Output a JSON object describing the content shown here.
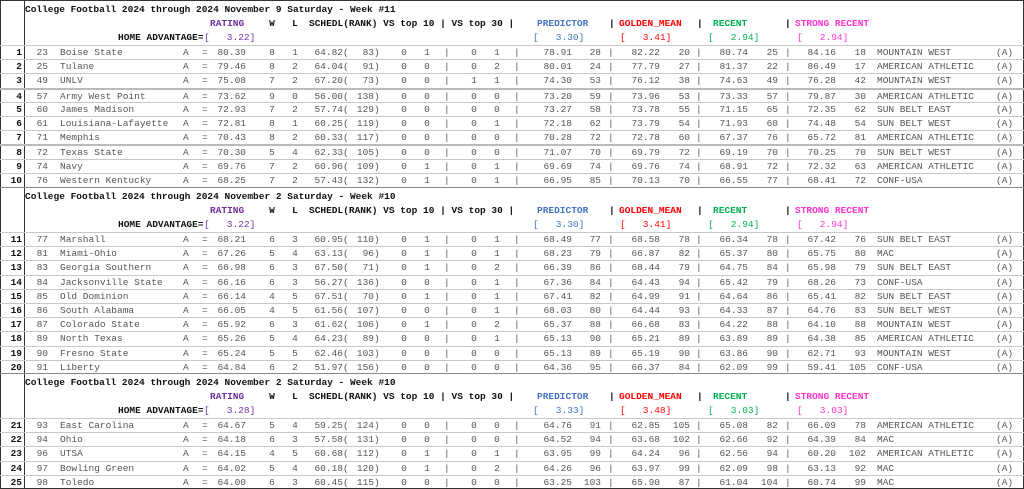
{
  "colors": {
    "rating": "#7030a0",
    "predictor": "#4472c4",
    "golden_mean": "#ff0000",
    "recent": "#00b050",
    "strong_recent": "#ff33cc"
  },
  "labels": {
    "rating": "RATING",
    "w": "W",
    "l": "L",
    "schedl": "SCHEDL(RANK) VS top 10 | VS top 30 |",
    "predictor": "PREDICTOR",
    "golden_mean": "GOLDEN_MEAN",
    "recent": "RECENT",
    "strong_recent": "STRONG RECENT",
    "sep": "|",
    "home_advantage": "HOME ADVANTAGE=",
    "eq": "=",
    "open": "(",
    "close": ")"
  },
  "sections": [
    {
      "title": "College Football 2024 through 2024 November 9 Saturday - Week #11",
      "home_adv": "[   3.22]",
      "predictor_adv": "[   3.30]",
      "golden_adv": "[   3.41]",
      "recent_adv": "[   2.94]",
      "strong_adv": "[   2.94]",
      "rows": [
        {
          "n": "1",
          "rank": "23",
          "team": "Boise State",
          "loc": "A",
          "rating": "80.39",
          "w": "8",
          "l": "1",
          "sched": "64.82",
          "sched_rank": "83",
          "t10w": "0",
          "t10l": "1",
          "t30w": "0",
          "t30l": "1",
          "pred": "78.91",
          "pred_rank": "28",
          "gm": "82.22",
          "gm_rank": "20",
          "rec": "80.74",
          "rec_rank": "25",
          "sr": "84.16",
          "sr_rank": "18",
          "conf": "MOUNTAIN WEST",
          "tag": "(A)"
        },
        {
          "n": "2",
          "rank": "25",
          "team": "Tulane",
          "loc": "A",
          "rating": "79.46",
          "w": "8",
          "l": "2",
          "sched": "64.04",
          "sched_rank": "91",
          "t10w": "0",
          "t10l": "0",
          "t30w": "0",
          "t30l": "2",
          "pred": "80.01",
          "pred_rank": "24",
          "gm": "77.79",
          "gm_rank": "27",
          "rec": "81.37",
          "rec_rank": "22",
          "sr": "86.49",
          "sr_rank": "17",
          "conf": "AMERICAN ATHLETIC",
          "tag": "(A)"
        },
        {
          "n": "3",
          "rank": "49",
          "team": "UNLV",
          "loc": "A",
          "rating": "75.08",
          "w": "7",
          "l": "2",
          "sched": "67.20",
          "sched_rank": "73",
          "t10w": "0",
          "t10l": "0",
          "t30w": "1",
          "t30l": "1",
          "pred": "74.30",
          "pred_rank": "53",
          "gm": "76.12",
          "gm_rank": "38",
          "rec": "74.63",
          "rec_rank": "49",
          "sr": "76.28",
          "sr_rank": "42",
          "conf": "MOUNTAIN WEST",
          "tag": "(A)"
        },
        {
          "n": "4",
          "rank": "57",
          "team": "Army West Point",
          "loc": "A",
          "rating": "73.62",
          "w": "9",
          "l": "0",
          "sched": "56.00",
          "sched_rank": "138",
          "t10w": "0",
          "t10l": "0",
          "t30w": "0",
          "t30l": "0",
          "pred": "73.20",
          "pred_rank": "59",
          "gm": "73.96",
          "gm_rank": "53",
          "rec": "73.33",
          "rec_rank": "57",
          "sr": "79.87",
          "sr_rank": "30",
          "conf": "AMERICAN ATHLETIC",
          "tag": "(A)"
        },
        {
          "n": "5",
          "rank": "60",
          "team": "James Madison",
          "loc": "A",
          "rating": "72.93",
          "w": "7",
          "l": "2",
          "sched": "57.74",
          "sched_rank": "129",
          "t10w": "0",
          "t10l": "0",
          "t30w": "0",
          "t30l": "0",
          "pred": "73.27",
          "pred_rank": "58",
          "gm": "73.78",
          "gm_rank": "55",
          "rec": "71.15",
          "rec_rank": "65",
          "sr": "72.35",
          "sr_rank": "62",
          "conf": "SUN BELT EAST",
          "tag": "(A)"
        },
        {
          "n": "6",
          "rank": "61",
          "team": "Louisiana-Lafayette",
          "loc": "A",
          "rating": "72.81",
          "w": "8",
          "l": "1",
          "sched": "60.25",
          "sched_rank": "119",
          "t10w": "0",
          "t10l": "0",
          "t30w": "0",
          "t30l": "1",
          "pred": "72.18",
          "pred_rank": "62",
          "gm": "73.79",
          "gm_rank": "54",
          "rec": "71.93",
          "rec_rank": "60",
          "sr": "74.48",
          "sr_rank": "54",
          "conf": "SUN BELT WEST",
          "tag": "(A)"
        },
        {
          "n": "7",
          "rank": "71",
          "team": "Memphis",
          "loc": "A",
          "rating": "70.43",
          "w": "8",
          "l": "2",
          "sched": "60.33",
          "sched_rank": "117",
          "t10w": "0",
          "t10l": "0",
          "t30w": "0",
          "t30l": "0",
          "pred": "70.28",
          "pred_rank": "72",
          "gm": "72.78",
          "gm_rank": "60",
          "rec": "67.37",
          "rec_rank": "76",
          "sr": "65.72",
          "sr_rank": "81",
          "conf": "AMERICAN ATHLETIC",
          "tag": "(A)"
        },
        {
          "n": "8",
          "rank": "72",
          "team": "Texas State",
          "loc": "A",
          "rating": "70.30",
          "w": "5",
          "l": "4",
          "sched": "62.33",
          "sched_rank": "105",
          "t10w": "0",
          "t10l": "0",
          "t30w": "0",
          "t30l": "0",
          "pred": "71.07",
          "pred_rank": "70",
          "gm": "69.79",
          "gm_rank": "72",
          "rec": "69.19",
          "rec_rank": "70",
          "sr": "70.25",
          "sr_rank": "70",
          "conf": "SUN BELT WEST",
          "tag": "(A)"
        },
        {
          "n": "9",
          "rank": "74",
          "team": "Navy",
          "loc": "A",
          "rating": "69.76",
          "w": "7",
          "l": "2",
          "sched": "60.96",
          "sched_rank": "109",
          "t10w": "0",
          "t10l": "1",
          "t30w": "0",
          "t30l": "1",
          "pred": "69.69",
          "pred_rank": "74",
          "gm": "69.76",
          "gm_rank": "74",
          "rec": "68.91",
          "rec_rank": "72",
          "sr": "72.32",
          "sr_rank": "63",
          "conf": "AMERICAN ATHLETIC",
          "tag": "(A)"
        },
        {
          "n": "10",
          "rank": "76",
          "team": "Western Kentucky",
          "loc": "A",
          "rating": "68.25",
          "w": "7",
          "l": "2",
          "sched": "57.43",
          "sched_rank": "132",
          "t10w": "0",
          "t10l": "1",
          "t30w": "0",
          "t30l": "1",
          "pred": "66.95",
          "pred_rank": "85",
          "gm": "70.13",
          "gm_rank": "70",
          "rec": "66.55",
          "rec_rank": "77",
          "sr": "68.41",
          "sr_rank": "72",
          "conf": "CONF-USA",
          "tag": "(A)"
        }
      ]
    },
    {
      "title": "College Football 2024 through 2024 November 2 Saturday - Week #10",
      "home_adv": "[   3.22]",
      "predictor_adv": "[   3.30]",
      "golden_adv": "[   3.41]",
      "recent_adv": "[   2.94]",
      "strong_adv": "[   2.94]",
      "rows": [
        {
          "n": "11",
          "rank": "77",
          "team": "Marshall",
          "loc": "A",
          "rating": "68.21",
          "w": "6",
          "l": "3",
          "sched": "60.95",
          "sched_rank": "110",
          "t10w": "0",
          "t10l": "1",
          "t30w": "0",
          "t30l": "1",
          "pred": "68.49",
          "pred_rank": "77",
          "gm": "68.58",
          "gm_rank": "78",
          "rec": "66.34",
          "rec_rank": "78",
          "sr": "67.42",
          "sr_rank": "76",
          "conf": "SUN BELT EAST",
          "tag": "(A)"
        },
        {
          "n": "12",
          "rank": "81",
          "team": "Miami-Ohio",
          "loc": "A",
          "rating": "67.26",
          "w": "5",
          "l": "4",
          "sched": "63.13",
          "sched_rank": "96",
          "t10w": "0",
          "t10l": "1",
          "t30w": "0",
          "t30l": "1",
          "pred": "68.23",
          "pred_rank": "79",
          "gm": "66.87",
          "gm_rank": "82",
          "rec": "65.37",
          "rec_rank": "80",
          "sr": "65.75",
          "sr_rank": "80",
          "conf": "MAC",
          "tag": "(A)"
        },
        {
          "n": "13",
          "rank": "83",
          "team": "Georgia Southern",
          "loc": "A",
          "rating": "66.98",
          "w": "6",
          "l": "3",
          "sched": "67.50",
          "sched_rank": "71",
          "t10w": "0",
          "t10l": "1",
          "t30w": "0",
          "t30l": "2",
          "pred": "66.39",
          "pred_rank": "86",
          "gm": "68.44",
          "gm_rank": "79",
          "rec": "64.75",
          "rec_rank": "84",
          "sr": "65.98",
          "sr_rank": "79",
          "conf": "SUN BELT EAST",
          "tag": "(A)"
        },
        {
          "n": "14",
          "rank": "84",
          "team": "Jacksonville State",
          "loc": "A",
          "rating": "66.16",
          "w": "6",
          "l": "3",
          "sched": "56.27",
          "sched_rank": "136",
          "t10w": "0",
          "t10l": "0",
          "t30w": "0",
          "t30l": "1",
          "pred": "67.36",
          "pred_rank": "84",
          "gm": "64.43",
          "gm_rank": "94",
          "rec": "65.42",
          "rec_rank": "79",
          "sr": "68.26",
          "sr_rank": "73",
          "conf": "CONF-USA",
          "tag": "(A)"
        },
        {
          "n": "15",
          "rank": "85",
          "team": "Old Dominion",
          "loc": "A",
          "rating": "66.14",
          "w": "4",
          "l": "5",
          "sched": "67.51",
          "sched_rank": "70",
          "t10w": "0",
          "t10l": "1",
          "t30w": "0",
          "t30l": "1",
          "pred": "67.41",
          "pred_rank": "82",
          "gm": "64.99",
          "gm_rank": "91",
          "rec": "64.64",
          "rec_rank": "86",
          "sr": "65.41",
          "sr_rank": "82",
          "conf": "SUN BELT EAST",
          "tag": "(A)"
        },
        {
          "n": "16",
          "rank": "86",
          "team": "South Alabama",
          "loc": "A",
          "rating": "66.05",
          "w": "4",
          "l": "5",
          "sched": "61.56",
          "sched_rank": "107",
          "t10w": "0",
          "t10l": "0",
          "t30w": "0",
          "t30l": "1",
          "pred": "68.03",
          "pred_rank": "80",
          "gm": "64.44",
          "gm_rank": "93",
          "rec": "64.33",
          "rec_rank": "87",
          "sr": "64.76",
          "sr_rank": "83",
          "conf": "SUN BELT WEST",
          "tag": "(A)"
        },
        {
          "n": "17",
          "rank": "87",
          "team": "Colorado State",
          "loc": "A",
          "rating": "65.92",
          "w": "6",
          "l": "3",
          "sched": "61.62",
          "sched_rank": "106",
          "t10w": "0",
          "t10l": "1",
          "t30w": "0",
          "t30l": "2",
          "pred": "65.37",
          "pred_rank": "88",
          "gm": "66.68",
          "gm_rank": "83",
          "rec": "64.22",
          "rec_rank": "88",
          "sr": "64.10",
          "sr_rank": "88",
          "conf": "MOUNTAIN WEST",
          "tag": "(A)"
        },
        {
          "n": "18",
          "rank": "89",
          "team": "North Texas",
          "loc": "A",
          "rating": "65.26",
          "w": "5",
          "l": "4",
          "sched": "64.23",
          "sched_rank": "89",
          "t10w": "0",
          "t10l": "0",
          "t30w": "0",
          "t30l": "1",
          "pred": "65.13",
          "pred_rank": "90",
          "gm": "65.21",
          "gm_rank": "89",
          "rec": "63.89",
          "rec_rank": "89",
          "sr": "64.38",
          "sr_rank": "85",
          "conf": "AMERICAN ATHLETIC",
          "tag": "(A)"
        },
        {
          "n": "19",
          "rank": "90",
          "team": "Fresno State",
          "loc": "A",
          "rating": "65.24",
          "w": "5",
          "l": "5",
          "sched": "62.46",
          "sched_rank": "103",
          "t10w": "0",
          "t10l": "0",
          "t30w": "0",
          "t30l": "0",
          "pred": "65.13",
          "pred_rank": "89",
          "gm": "65.19",
          "gm_rank": "90",
          "rec": "63.86",
          "rec_rank": "90",
          "sr": "62.71",
          "sr_rank": "93",
          "conf": "MOUNTAIN WEST",
          "tag": "(A)"
        },
        {
          "n": "20",
          "rank": "91",
          "team": "Liberty",
          "loc": "A",
          "rating": "64.84",
          "w": "6",
          "l": "2",
          "sched": "51.97",
          "sched_rank": "156",
          "t10w": "0",
          "t10l": "0",
          "t30w": "0",
          "t30l": "0",
          "pred": "64.36",
          "pred_rank": "95",
          "gm": "66.37",
          "gm_rank": "84",
          "rec": "62.09",
          "rec_rank": "99",
          "sr": "59.41",
          "sr_rank": "105",
          "conf": "CONF-USA",
          "tag": "(A)"
        }
      ]
    },
    {
      "title": "College Football 2024 through 2024 November 2 Saturday - Week #10",
      "home_adv": "[   3.28]",
      "predictor_adv": "[   3.33]",
      "golden_adv": "[   3.48]",
      "recent_adv": "[   3.03]",
      "strong_adv": "[   3.03]",
      "rows": [
        {
          "n": "21",
          "rank": "93",
          "team": "East Carolina",
          "loc": "A",
          "rating": "64.67",
          "w": "5",
          "l": "4",
          "sched": "59.25",
          "sched_rank": "124",
          "t10w": "0",
          "t10l": "0",
          "t30w": "0",
          "t30l": "0",
          "pred": "64.76",
          "pred_rank": "91",
          "gm": "62.85",
          "gm_rank": "105",
          "rec": "65.08",
          "rec_rank": "82",
          "sr": "66.09",
          "sr_rank": "78",
          "conf": "AMERICAN ATHLETIC",
          "tag": "(A)"
        },
        {
          "n": "22",
          "rank": "94",
          "team": "Ohio",
          "loc": "A",
          "rating": "64.18",
          "w": "6",
          "l": "3",
          "sched": "57.58",
          "sched_rank": "131",
          "t10w": "0",
          "t10l": "0",
          "t30w": "0",
          "t30l": "0",
          "pred": "64.52",
          "pred_rank": "94",
          "gm": "63.68",
          "gm_rank": "102",
          "rec": "62.66",
          "rec_rank": "92",
          "sr": "64.39",
          "sr_rank": "84",
          "conf": "MAC",
          "tag": "(A)"
        },
        {
          "n": "23",
          "rank": "96",
          "team": "UTSA",
          "loc": "A",
          "rating": "64.15",
          "w": "4",
          "l": "5",
          "sched": "60.68",
          "sched_rank": "112",
          "t10w": "0",
          "t10l": "1",
          "t30w": "0",
          "t30l": "1",
          "pred": "63.95",
          "pred_rank": "99",
          "gm": "64.24",
          "gm_rank": "96",
          "rec": "62.56",
          "rec_rank": "94",
          "sr": "60.20",
          "sr_rank": "102",
          "conf": "AMERICAN ATHLETIC",
          "tag": "(A)"
        },
        {
          "n": "24",
          "rank": "97",
          "team": "Bowling Green",
          "loc": "A",
          "rating": "64.02",
          "w": "5",
          "l": "4",
          "sched": "60.18",
          "sched_rank": "120",
          "t10w": "0",
          "t10l": "1",
          "t30w": "0",
          "t30l": "2",
          "pred": "64.26",
          "pred_rank": "96",
          "gm": "63.97",
          "gm_rank": "99",
          "rec": "62.09",
          "rec_rank": "98",
          "sr": "63.13",
          "sr_rank": "92",
          "conf": "MAC",
          "tag": "(A)"
        },
        {
          "n": "25",
          "rank": "98",
          "team": "Toledo",
          "loc": "A",
          "rating": "64.00",
          "w": "6",
          "l": "3",
          "sched": "60.45",
          "sched_rank": "115",
          "t10w": "0",
          "t10l": "0",
          "t30w": "0",
          "t30l": "0",
          "pred": "63.25",
          "pred_rank": "103",
          "gm": "65.90",
          "gm_rank": "87",
          "rec": "61.04",
          "rec_rank": "104",
          "sr": "60.74",
          "sr_rank": "99",
          "conf": "MAC",
          "tag": "(A)"
        }
      ]
    }
  ]
}
